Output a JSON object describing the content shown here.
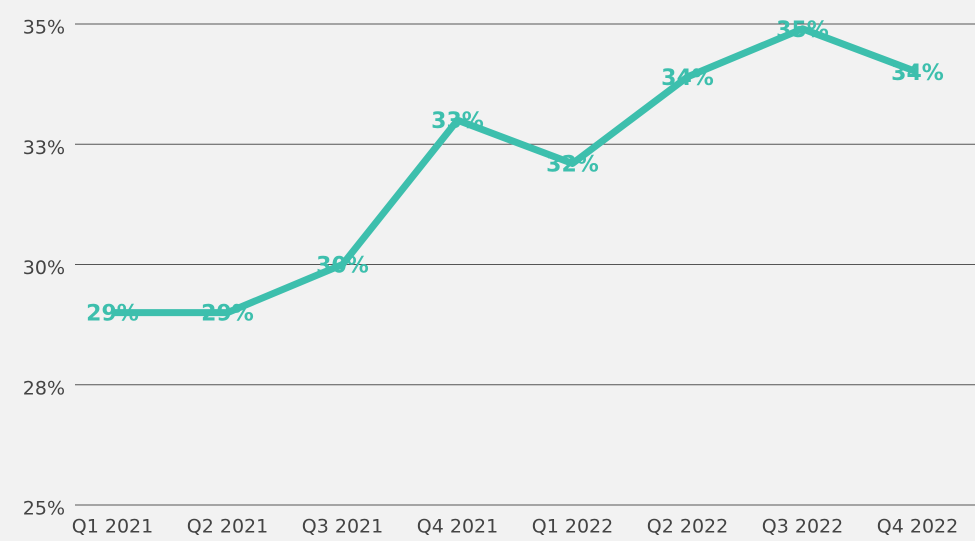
{
  "chart_data": {
    "type": "line",
    "categories": [
      "Q1 2021",
      "Q2 2021",
      "Q3 2021",
      "Q4 2021",
      "Q1 2022",
      "Q2 2022",
      "Q3 2022",
      "Q4 2022"
    ],
    "series": [
      {
        "color": "#3dbfad",
        "values": [
          29,
          29,
          30,
          33,
          32.1,
          33.9,
          34.9,
          34
        ],
        "value_labels": [
          "29%",
          "29%",
          "30%",
          "33%",
          "32%",
          "34%",
          "35%",
          "34%"
        ]
      }
    ],
    "ylim": [
      25,
      35
    ],
    "yticks": [
      {
        "value": 25,
        "label": "25%"
      },
      {
        "value": 27.5,
        "label": "28%"
      },
      {
        "value": 30,
        "label": "30%"
      },
      {
        "value": 32.5,
        "label": "33%"
      },
      {
        "value": 35,
        "label": "35%"
      }
    ],
    "grid": true
  }
}
